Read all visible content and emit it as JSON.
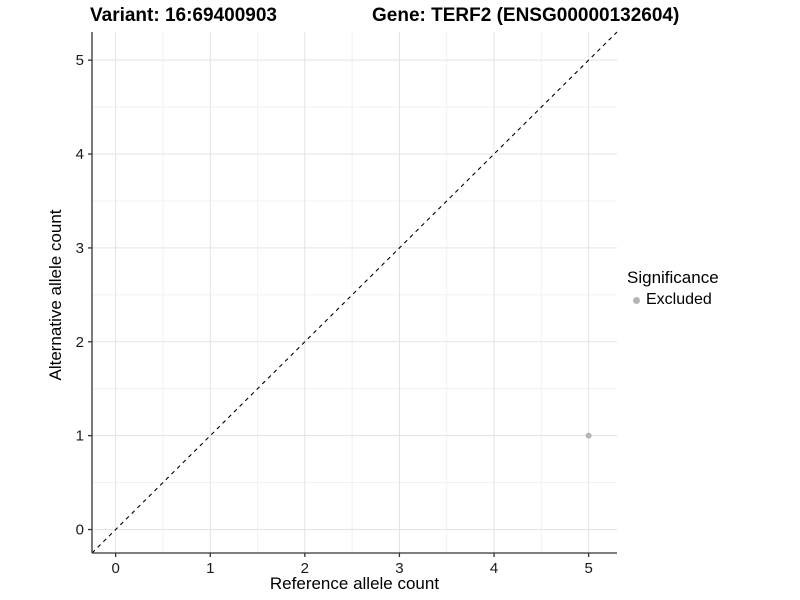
{
  "titles": {
    "variant": "Variant: 16:69400903",
    "gene": "Gene: TERF2 (ENSG00000132604)"
  },
  "chart_data": {
    "type": "scatter",
    "title_left": "Variant: 16:69400903",
    "title_right": "Gene: TERF2 (ENSG00000132604)",
    "xlabel": "Reference allele count",
    "ylabel": "Alternative allele count",
    "xlim": [
      -0.25,
      5.3
    ],
    "ylim": [
      -0.25,
      5.3
    ],
    "xticks": [
      0,
      1,
      2,
      3,
      4,
      5
    ],
    "yticks": [
      0,
      1,
      2,
      3,
      4,
      5
    ],
    "minor_ticks": [
      0.5,
      1.5,
      2.5,
      3.5,
      4.5
    ],
    "grid": true,
    "identity_line": {
      "style": "dashed",
      "from": -0.25,
      "to": 5.3
    },
    "series": [
      {
        "name": "Excluded",
        "color": "#b5b5b5",
        "points": [
          {
            "x": 5,
            "y": 1
          }
        ]
      }
    ],
    "legend": {
      "title": "Significance",
      "position": "right",
      "entries": [
        {
          "label": "Excluded",
          "color": "#b5b5b5"
        }
      ]
    }
  },
  "colors": {
    "background": "#ffffff",
    "grid_major": "#e3e3e3",
    "grid_minor": "#f1f1f1",
    "axis": "#333333",
    "identity_line": "#000000",
    "point": "#b5b5b5",
    "text": "#000000"
  }
}
